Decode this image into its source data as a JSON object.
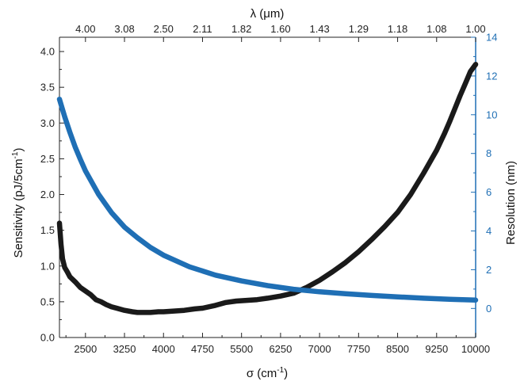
{
  "chart_data": {
    "type": "line",
    "grid": false,
    "legend": "none",
    "x_bottom": {
      "label": "σ (cm",
      "label_sup": "-1",
      "label_end": ")",
      "range": [
        2000,
        10000
      ],
      "ticks": [
        2500,
        3250,
        4000,
        4750,
        5500,
        6250,
        7000,
        7750,
        8500,
        9250,
        10000
      ],
      "tick_labels": [
        "2500",
        "3250",
        "4000",
        "4750",
        "5500",
        "6250",
        "7000",
        "7750",
        "8500",
        "9250",
        "10000"
      ]
    },
    "x_top": {
      "label": "λ (μm)",
      "ticks_sigma": [
        2500,
        3250,
        4000,
        4750,
        5500,
        6250,
        7000,
        7750,
        8500,
        9250,
        10000
      ],
      "tick_labels": [
        "4.00",
        "3.08",
        "2.50",
        "2.11",
        "1.82",
        "1.60",
        "1.43",
        "1.29",
        "1.18",
        "1.08",
        "1.00"
      ]
    },
    "y_left": {
      "label": "Sensitivity (pJ/5cm",
      "label_sup": "-1",
      "label_end": ")",
      "range": [
        0,
        4.2
      ],
      "ticks": [
        0.0,
        0.5,
        1.0,
        1.5,
        2.0,
        2.5,
        3.0,
        3.5,
        4.0
      ],
      "tick_labels": [
        "0.0",
        "0.5",
        "1.0",
        "1.5",
        "2.0",
        "2.5",
        "3.0",
        "3.5",
        "4.0"
      ],
      "color": "#111111"
    },
    "y_right": {
      "label": "Resolution (nm)",
      "range": [
        -1.5,
        14
      ],
      "ticks": [
        0,
        2,
        4,
        6,
        8,
        10,
        12,
        14
      ],
      "tick_labels": [
        "0",
        "2",
        "4",
        "6",
        "8",
        "10",
        "12",
        "14"
      ],
      "color": "#1f6fb5"
    },
    "series": [
      {
        "axis": "left",
        "color": "#1a1a1a",
        "x": [
          2000,
          2030,
          2060,
          2100,
          2150,
          2200,
          2300,
          2400,
          2500,
          2600,
          2700,
          2800,
          2900,
          3000,
          3100,
          3250,
          3400,
          3500,
          3600,
          3750,
          3900,
          4000,
          4200,
          4400,
          4600,
          4750,
          5000,
          5200,
          5400,
          5600,
          5800,
          6000,
          6250,
          6500,
          6750,
          7000,
          7250,
          7500,
          7750,
          8000,
          8250,
          8500,
          8750,
          9000,
          9250,
          9400,
          9500,
          9600,
          9700,
          9800,
          9900,
          10000
        ],
        "y": [
          1.6,
          1.3,
          1.1,
          0.98,
          0.92,
          0.85,
          0.78,
          0.7,
          0.65,
          0.6,
          0.53,
          0.5,
          0.46,
          0.43,
          0.41,
          0.38,
          0.36,
          0.35,
          0.35,
          0.35,
          0.36,
          0.36,
          0.37,
          0.38,
          0.4,
          0.41,
          0.45,
          0.49,
          0.51,
          0.52,
          0.53,
          0.55,
          0.58,
          0.62,
          0.7,
          0.8,
          0.92,
          1.05,
          1.2,
          1.37,
          1.55,
          1.75,
          2.0,
          2.3,
          2.62,
          2.85,
          3.02,
          3.2,
          3.38,
          3.55,
          3.72,
          3.82
        ]
      },
      {
        "axis": "right",
        "color": "#1f6fb5",
        "x": [
          2000,
          2100,
          2200,
          2300,
          2400,
          2500,
          2750,
          3000,
          3250,
          3500,
          3750,
          4000,
          4500,
          5000,
          5500,
          6000,
          6500,
          7000,
          7500,
          8000,
          8500,
          9000,
          9500,
          10000
        ],
        "y": [
          10.8,
          9.9,
          9.1,
          8.35,
          7.7,
          7.1,
          5.9,
          4.95,
          4.2,
          3.65,
          3.15,
          2.75,
          2.15,
          1.72,
          1.42,
          1.18,
          0.99,
          0.86,
          0.76,
          0.67,
          0.6,
          0.53,
          0.47,
          0.43
        ]
      }
    ]
  }
}
